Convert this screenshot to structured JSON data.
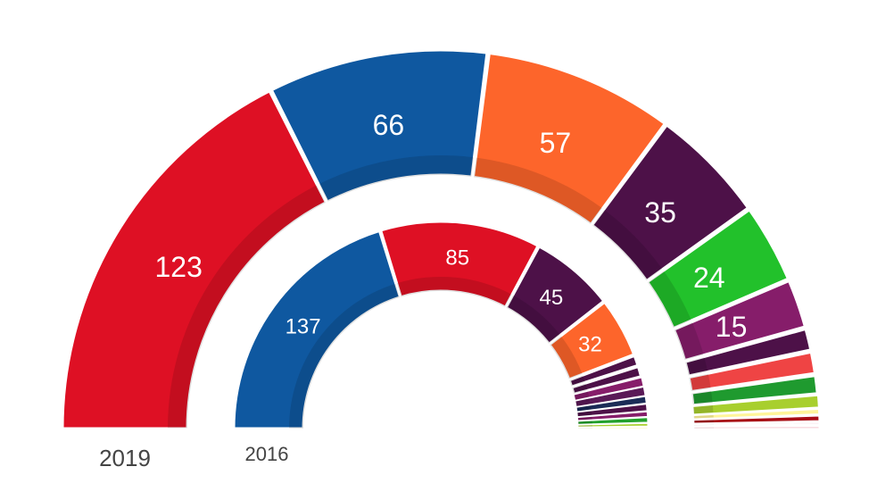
{
  "chart_data": [
    {
      "type": "pie",
      "title": "2019",
      "colors": {
        "label_text": "#ffffff",
        "year_text": "#444444"
      },
      "series": [
        {
          "value": 123,
          "label": "123",
          "color": "#de1024"
        },
        {
          "value": 66,
          "label": "66",
          "color": "#0f58a0"
        },
        {
          "value": 57,
          "label": "57",
          "color": "#fd652b"
        },
        {
          "value": 35,
          "label": "35",
          "color": "#4d1148"
        },
        {
          "value": 24,
          "label": "24",
          "color": "#22c12b"
        },
        {
          "value": 15,
          "label": "15",
          "color": "#861d6a"
        },
        {
          "value": 7,
          "color": "#4d1148"
        },
        {
          "value": 7,
          "color": "#ef4444"
        },
        {
          "value": 6,
          "color": "#1f9a2f"
        },
        {
          "value": 4,
          "color": "#a8cf2e"
        },
        {
          "value": 2,
          "color": "#fff59a"
        },
        {
          "value": 2,
          "color": "#a80d14"
        },
        {
          "value": 1,
          "color": "#f3c2cf"
        },
        {
          "value": 1,
          "color": "#f7d7de"
        }
      ]
    },
    {
      "type": "pie",
      "title": "2016",
      "colors": {
        "label_text": "#ffffff",
        "year_text": "#444444"
      },
      "series": [
        {
          "value": 137,
          "label": "137",
          "color": "#0f58a0"
        },
        {
          "value": 85,
          "label": "85",
          "color": "#de1024"
        },
        {
          "value": 45,
          "label": "45",
          "color": "#4d1148"
        },
        {
          "value": 32,
          "label": "32",
          "color": "#fd652b"
        },
        {
          "value": 6,
          "color": "#4d1148"
        },
        {
          "value": 6,
          "color": "#4d1148"
        },
        {
          "value": 5,
          "color": "#861d6a"
        },
        {
          "value": 5,
          "color": "#5a1a57"
        },
        {
          "value": 4,
          "color": "#1b2c57"
        },
        {
          "value": 4,
          "color": "#4d1148"
        },
        {
          "value": 3,
          "color": "#861d6a"
        },
        {
          "value": 3,
          "color": "#22a02b"
        },
        {
          "value": 2,
          "color": "#a8cf2e"
        },
        {
          "value": 1,
          "color": "#fff59a"
        }
      ]
    }
  ]
}
